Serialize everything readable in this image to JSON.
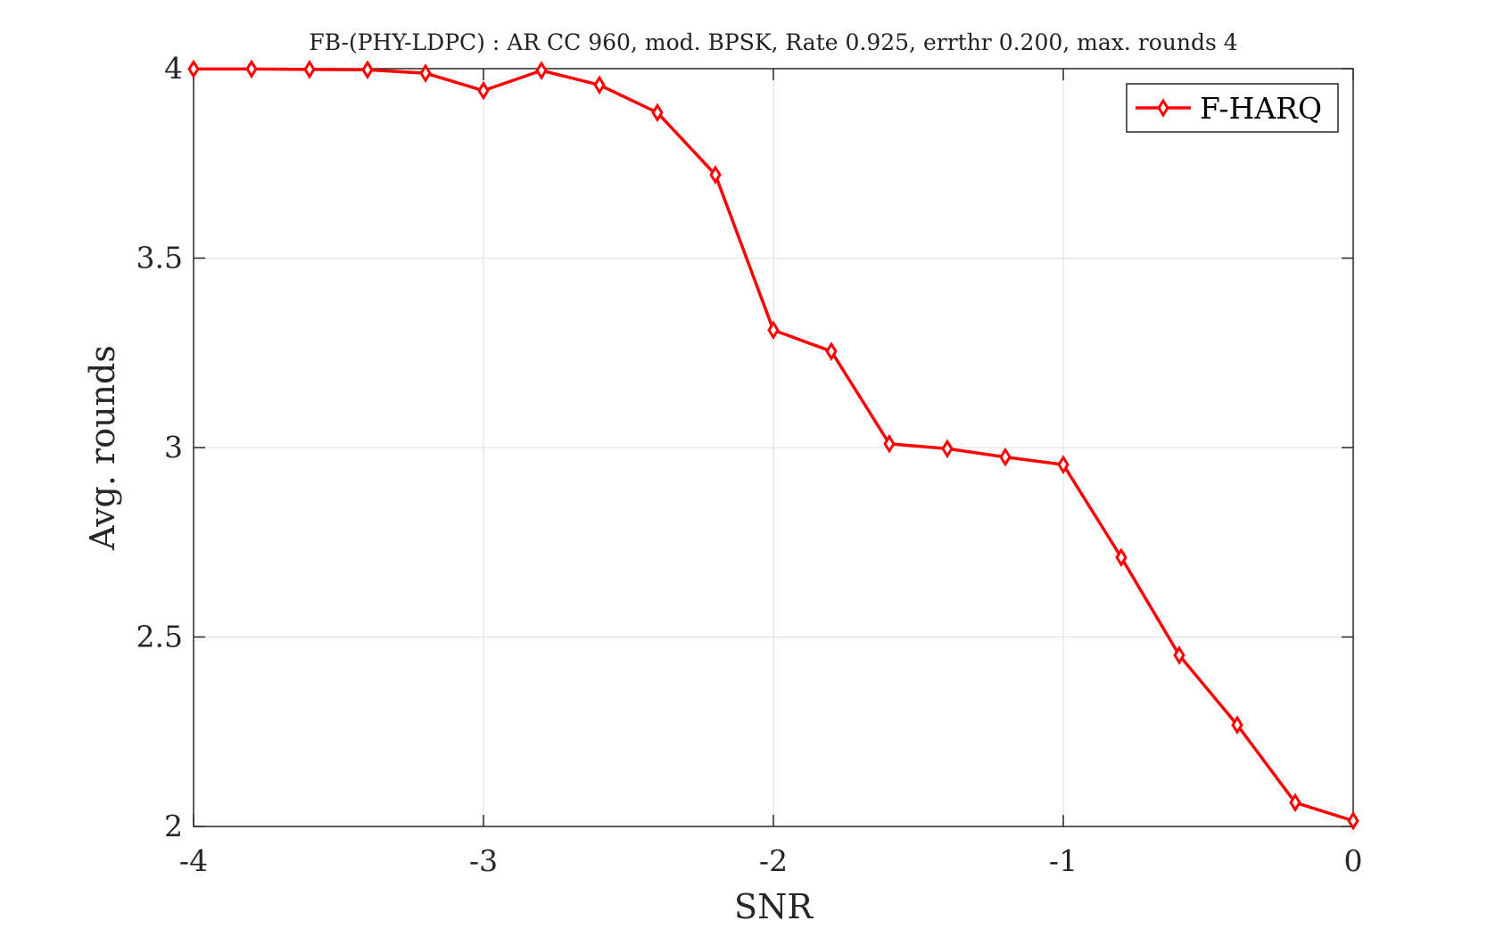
{
  "chart_data": {
    "type": "line",
    "title": "FB-(PHY-LDPC) : AR CC 960, mod. BPSK, Rate 0.925, errthr 0.200, max. rounds 4",
    "xlabel": "SNR",
    "ylabel": "Avg. rounds",
    "xlim": [
      -4,
      0
    ],
    "ylim": [
      2,
      4
    ],
    "xticks": [
      -4,
      -3,
      -2,
      -1,
      0
    ],
    "xtick_labels": [
      "-4",
      "-3",
      "-2",
      "-1",
      "0"
    ],
    "yticks": [
      2,
      2.5,
      3,
      3.5,
      4
    ],
    "ytick_labels": [
      "2",
      "2.5",
      "3",
      "3.5",
      "4"
    ],
    "grid": true,
    "legend_position": "top-right",
    "series": [
      {
        "name": "F-HARQ",
        "color": "#ff0000",
        "marker": "diamond",
        "x": [
          -4.0,
          -3.8,
          -3.6,
          -3.4,
          -3.2,
          -3.0,
          -2.8,
          -2.6,
          -2.4,
          -2.2,
          -2.0,
          -1.8,
          -1.6,
          -1.4,
          -1.2,
          -1.0,
          -0.8,
          -0.6,
          -0.4,
          -0.2,
          0.0
        ],
        "y": [
          3.999,
          3.999,
          3.998,
          3.997,
          3.988,
          3.942,
          3.995,
          3.957,
          3.884,
          3.72,
          3.31,
          3.254,
          3.01,
          2.997,
          2.975,
          2.955,
          2.71,
          2.452,
          2.268,
          2.063,
          2.015
        ]
      }
    ]
  }
}
